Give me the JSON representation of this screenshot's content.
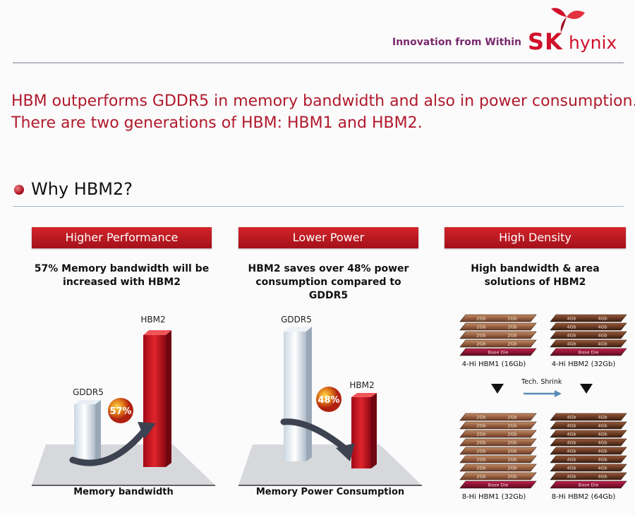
{
  "header": {
    "tagline": "Innovation from Within",
    "logo_sk": "SK",
    "logo_hynix": "hynix"
  },
  "intro": {
    "line1": "HBM outperforms GDDR5 in memory bandwidth and also in power consumption.",
    "line2": "There are two generations of HBM: HBM1 and HBM2."
  },
  "section_title": "Why HBM2?",
  "panels": [
    {
      "title": "Higher Performance",
      "desc_line1": "57% Memory bandwidth will be",
      "desc_line2": "increased with HBM2",
      "axis_label": "Memory bandwidth",
      "bar_left_label": "GDDR5",
      "bar_right_label": "HBM2",
      "badge": "57%"
    },
    {
      "title": "Lower Power",
      "desc_line1": "HBM2 saves over 48% power",
      "desc_line2": "consumption compared to GDDR5",
      "axis_label": "Memory Power Consumption",
      "bar_left_label": "GDDR5",
      "bar_right_label": "HBM2",
      "badge": "48%"
    },
    {
      "title": "High Density",
      "desc_line1": "High bandwidth & area",
      "desc_line2": "solutions of HBM2"
    }
  ],
  "density": {
    "stack_4hi_hbm1": {
      "label": "4-Hi HBM1 (16Gb)",
      "layer": "2Gb",
      "base": "Base Die"
    },
    "stack_4hi_hbm2": {
      "label": "4-Hi HBM2 (32Gb)",
      "layer": "4Gb",
      "base": "Base Die"
    },
    "stack_8hi_hbm1": {
      "label": "8-Hi HBM1 (32Gb)",
      "layer": "2Gb",
      "base": "Base Die"
    },
    "stack_8hi_hbm2": {
      "label": "8-Hi HBM2 (64Gb)",
      "layer": "4Gb",
      "base": "Base Die"
    },
    "tech_shrink": "Tech. Shrink"
  },
  "colors": {
    "brand_red": "#d0102a",
    "headline_red": "#b0192c",
    "tagline_purple": "#7a2a6e"
  }
}
